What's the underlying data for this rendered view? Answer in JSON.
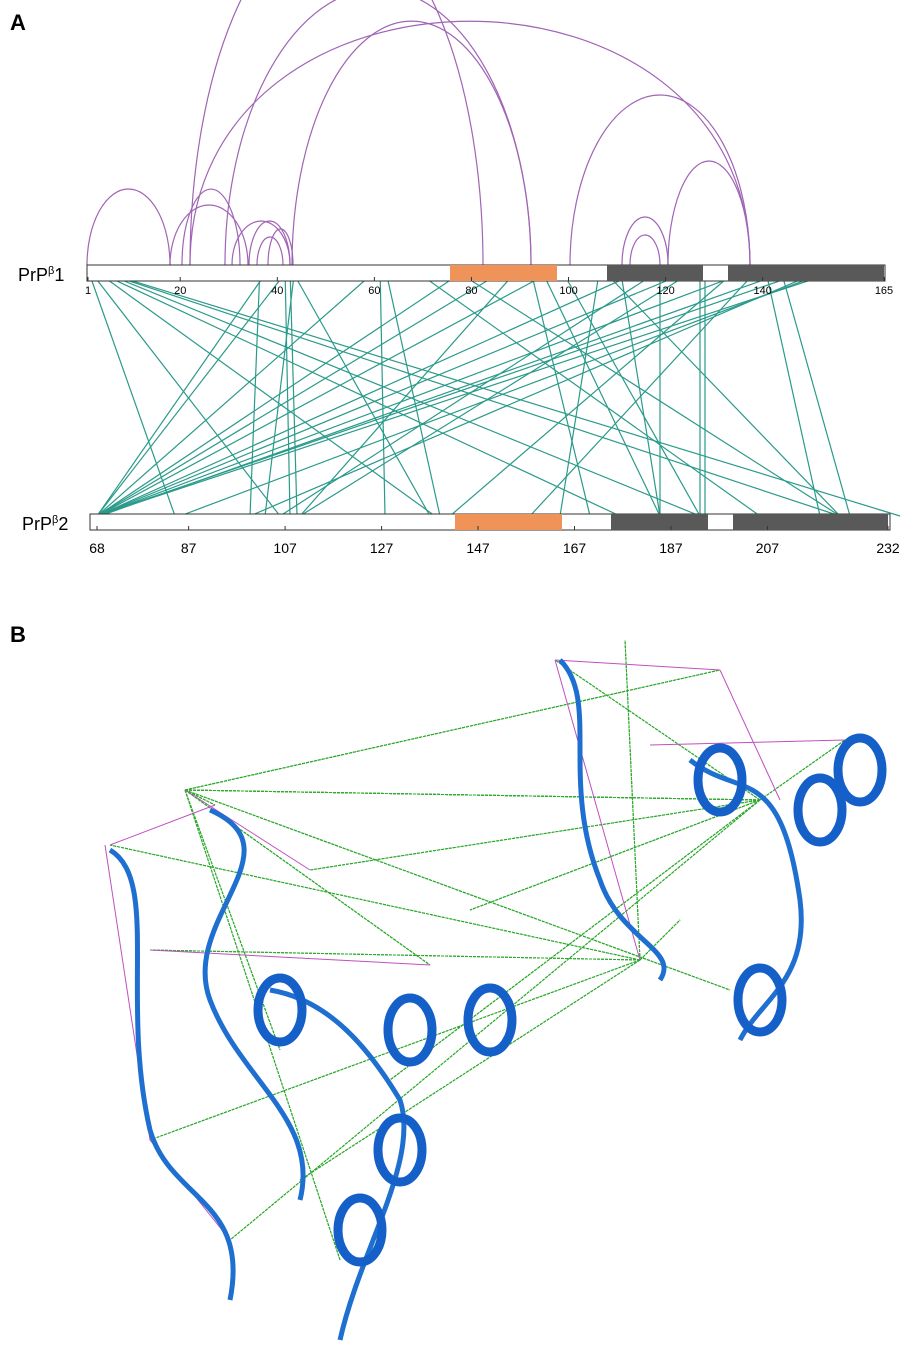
{
  "panels": {
    "a": "A",
    "b": "B"
  },
  "top_protein": {
    "prefix": "PrP",
    "sup": "β",
    "suffix": "1",
    "ticks": [
      1,
      20,
      40,
      60,
      80,
      100,
      120,
      140,
      165
    ]
  },
  "bottom_protein": {
    "prefix": "PrP",
    "sup": "β",
    "suffix": "2",
    "ticks": [
      68,
      87,
      107,
      127,
      147,
      167,
      187,
      207,
      232
    ]
  }
}
